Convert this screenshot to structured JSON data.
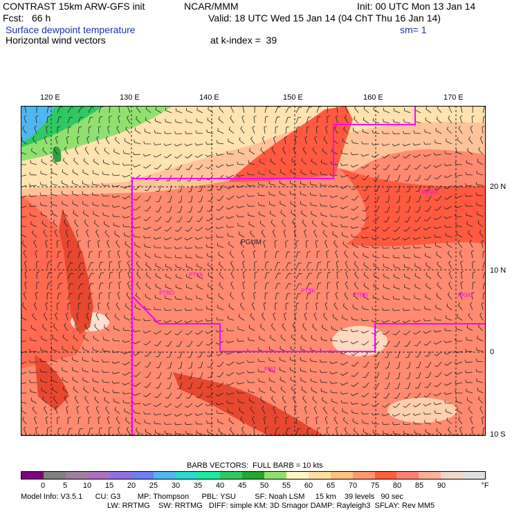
{
  "header": {
    "line1_left": "CONTRAST 15km ARW-GFS init",
    "line1_mid": "NCAR/MMM",
    "line1_right": "Init: 00 UTC Mon 13 Jan 14",
    "fcst": "Fcst:   66 h",
    "valid": "Valid: 18 UTC Wed 15 Jan 14 (04 ChT Thu 16 Jan 14)",
    "field1": "Surface dewpoint temperature",
    "smooth": "sm= 1",
    "field2": "Horizontal wind vectors",
    "kindex": "at k-index =  39"
  },
  "map": {
    "lon_labels": [
      "120 E",
      "130 E",
      "140 E",
      "150 E",
      "160 E",
      "170 E"
    ],
    "lat_labels": [
      "20 N",
      "10 N",
      "0",
      "10 S"
    ],
    "stations": [
      "PGUM",
      "PTYA",
      "PTRO",
      "PTSK",
      "PTPN",
      "PKMJ",
      "PMJ",
      "PKWA"
    ],
    "boundary_color": "#ff00ff",
    "legend_title": "BARB VECTORS:  FULL BARB = 10 kts"
  },
  "colorbar": {
    "labels": [
      "0",
      "5",
      "10",
      "15",
      "20",
      "25",
      "30",
      "35",
      "40",
      "45",
      "50",
      "55",
      "60",
      "65",
      "70",
      "75",
      "80",
      "85",
      "90"
    ],
    "unit": "°F",
    "colors": [
      "#800080",
      "#808080",
      "#a080a0",
      "#b070c0",
      "#9070e0",
      "#6f7ff0",
      "#4fb7f0",
      "#30d8d0",
      "#20e8a0",
      "#30c860",
      "#20a830",
      "#90e070",
      "#fff8c0",
      "#ffe0a0",
      "#ffc080",
      "#ff9870",
      "#ff6040",
      "#ff8070",
      "#ffb098",
      "#f0d8c8",
      "#e0e0e0"
    ]
  },
  "footer": {
    "line1": "Model Info: V3.5.1      CU: G3        MP: Thompson      PBL: YSU         SF: Noah LSM     15 km    39 levels   90 sec",
    "line2": "LW: RRTMG    SW: RRTMG   DIFF: simple KM: 3D Smagor DAMP: Rayleigh3  SFLAY: Rev MM5"
  }
}
